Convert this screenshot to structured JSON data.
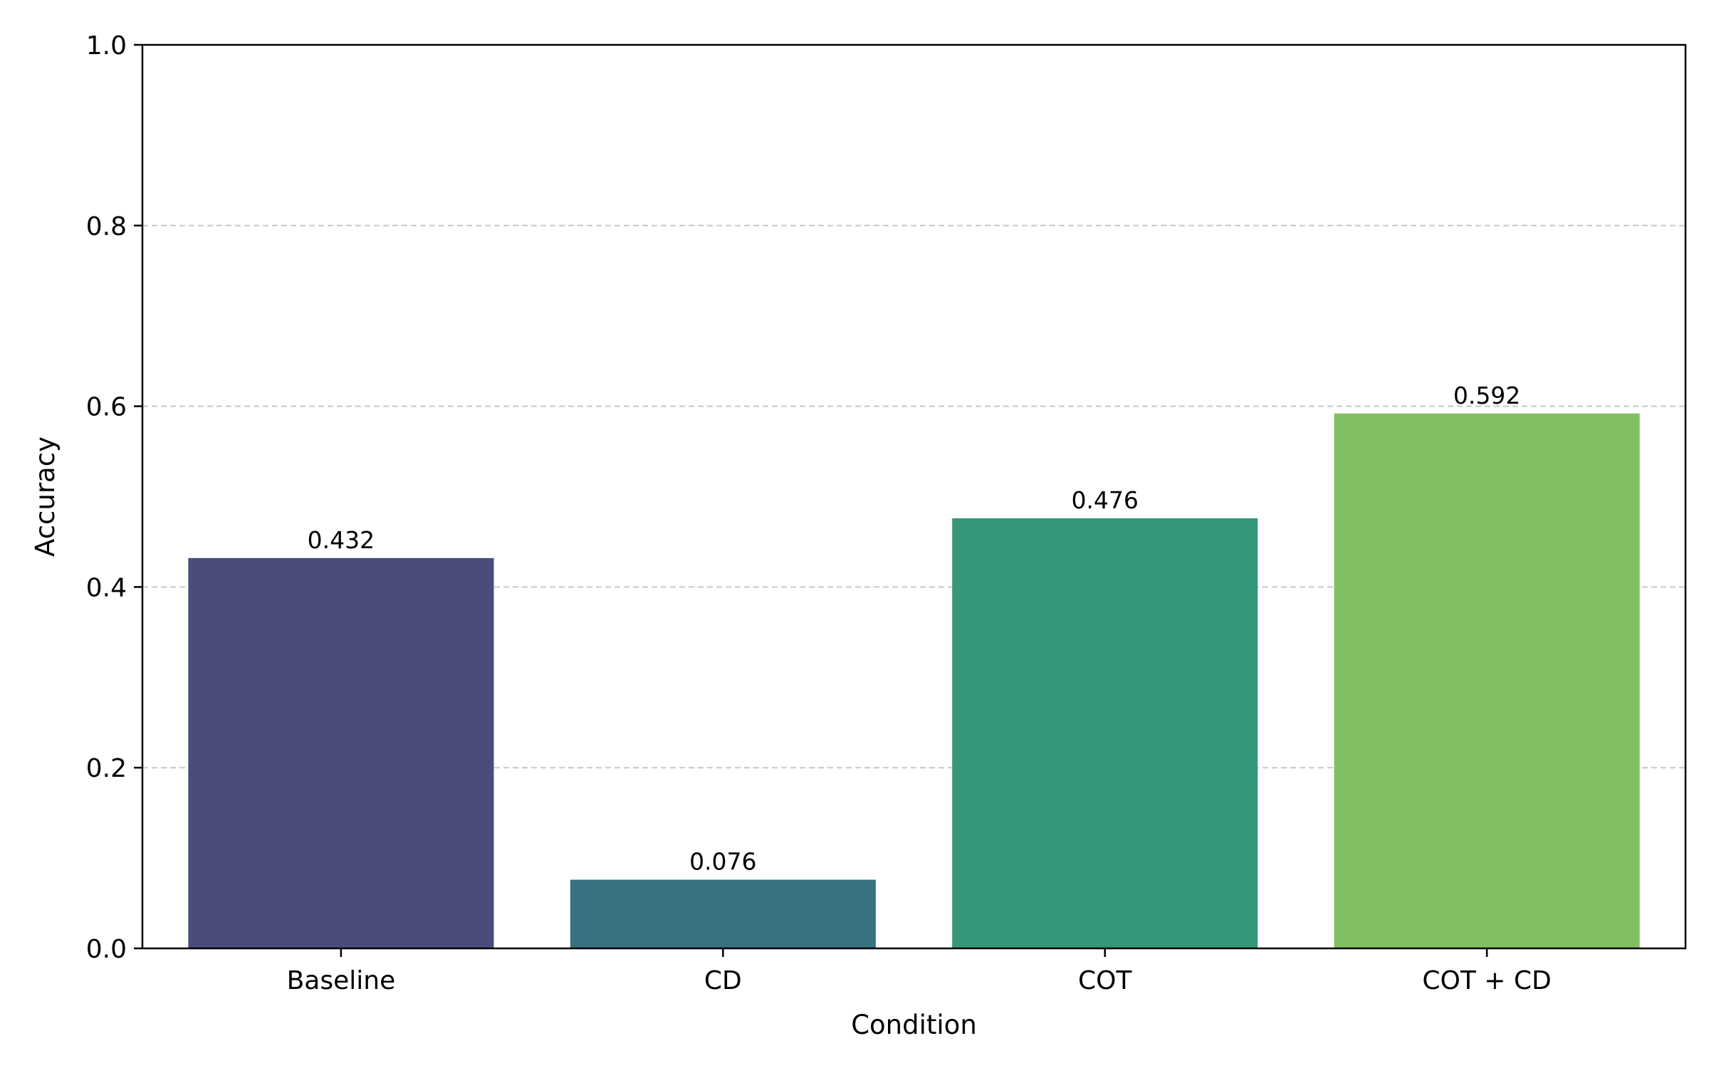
{
  "chart_data": {
    "type": "bar",
    "title": "",
    "xlabel": "Condition",
    "ylabel": "Accuracy",
    "categories": [
      "Baseline",
      "CD",
      "COT",
      "COT + CD"
    ],
    "values": [
      0.432,
      0.076,
      0.476,
      0.592
    ],
    "value_labels": [
      "0.432",
      "0.076",
      "0.476",
      "0.592"
    ],
    "colors": [
      "#4a4d7c",
      "#38717f",
      "#36977b",
      "#81c062"
    ],
    "ylim": [
      0,
      1.0
    ],
    "yticks": [
      0.0,
      0.2,
      0.4,
      0.6,
      0.8,
      1.0
    ],
    "ytick_labels": [
      "0.0",
      "0.2",
      "0.4",
      "0.6",
      "0.8",
      "1.0"
    ],
    "grid": {
      "axis": "y",
      "style": "dashed",
      "color": "#c8c8c8"
    },
    "legend": "none"
  }
}
